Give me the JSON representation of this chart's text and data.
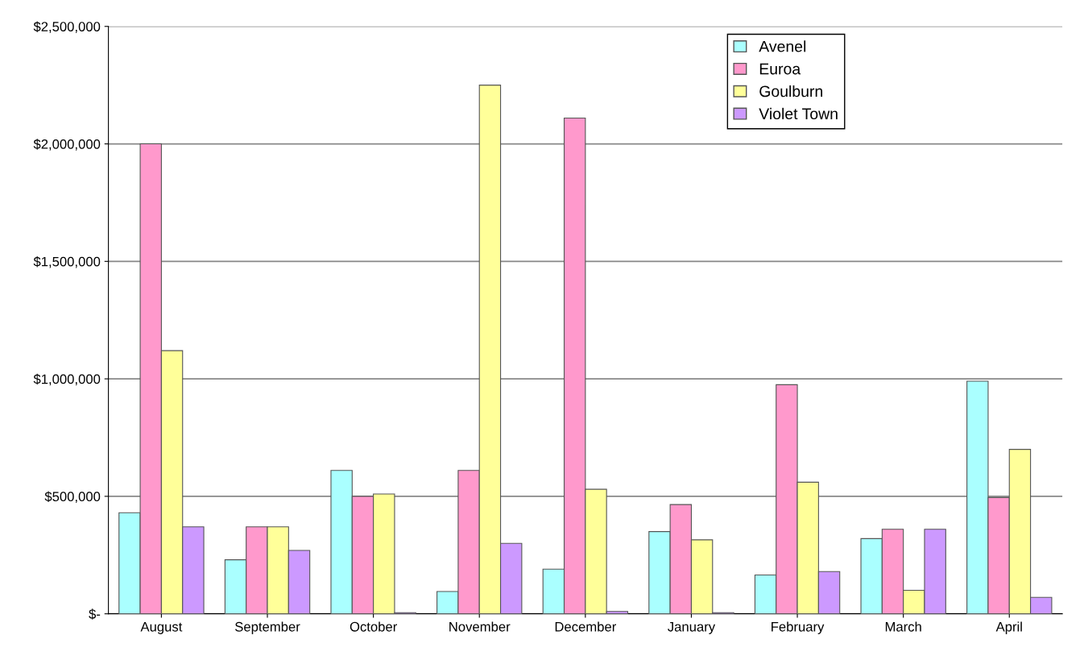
{
  "chart_data": {
    "type": "bar",
    "categories": [
      "August",
      "September",
      "October",
      "November",
      "December",
      "January",
      "February",
      "March",
      "April"
    ],
    "series": [
      {
        "name": "Avenel",
        "color": "#aaffff",
        "values": [
          430000,
          230000,
          610000,
          95000,
          190000,
          350000,
          165000,
          320000,
          990000
        ]
      },
      {
        "name": "Euroa",
        "color": "#ff99cc",
        "values": [
          2000000,
          370000,
          500000,
          610000,
          2110000,
          465000,
          975000,
          360000,
          495000
        ]
      },
      {
        "name": "Goulburn",
        "color": "#ffff99",
        "values": [
          1120000,
          370000,
          510000,
          2250000,
          530000,
          315000,
          560000,
          100000,
          700000
        ]
      },
      {
        "name": "Violet Town",
        "color": "#cc99ff",
        "values": [
          370000,
          270000,
          5000,
          300000,
          10000,
          5000,
          180000,
          360000,
          70000
        ]
      }
    ],
    "ylim": [
      0,
      2500000
    ],
    "yticks": [
      {
        "value": 0,
        "label": "$-"
      },
      {
        "value": 500000,
        "label": "$500,000"
      },
      {
        "value": 1000000,
        "label": "$1,000,000"
      },
      {
        "value": 1500000,
        "label": "$1,500,000"
      },
      {
        "value": 2000000,
        "label": "$2,000,000"
      },
      {
        "value": 2500000,
        "label": "$2,500,000"
      }
    ],
    "grid": "y",
    "legend": "top right"
  }
}
